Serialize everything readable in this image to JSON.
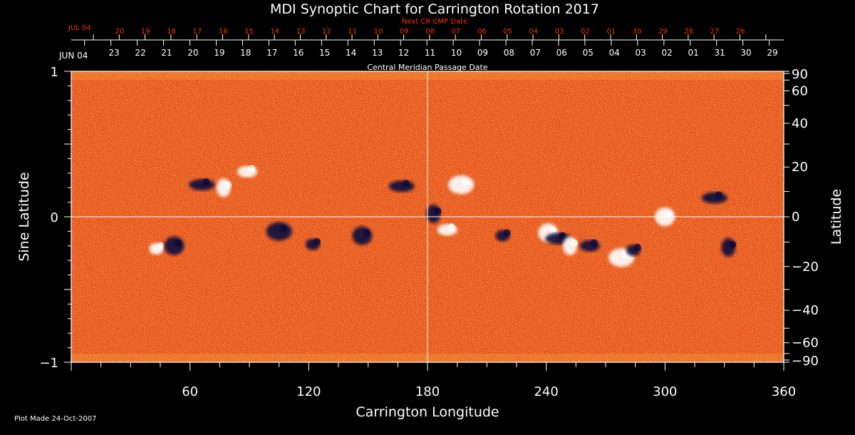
{
  "chart_data": {
    "type": "heatmap",
    "title": "MDI Synoptic Chart for Carrington Rotation 2017",
    "xlabel": "Carrington Longitude",
    "ylabel_left": "Sine Latitude",
    "ylabel_right": "Latitude",
    "xlim": [
      0,
      360
    ],
    "ylim": [
      -1,
      1
    ],
    "x_ticks": [
      60,
      120,
      180,
      240,
      300,
      360
    ],
    "y_ticks_left": [
      "1",
      "0",
      "−1"
    ],
    "y_ticks_right": [
      "90",
      "60",
      "40",
      "20",
      "0",
      "−20",
      "−40",
      "−60",
      "−90"
    ],
    "top_axis_label": "Central Meridian Passage Date",
    "top_axis_month": "JUN 04",
    "top_axis_dates": [
      "23",
      "22",
      "21",
      "20",
      "19",
      "18",
      "17",
      "16",
      "15",
      "14",
      "13",
      "12",
      "11",
      "10",
      "09",
      "08",
      "07",
      "06",
      "05",
      "04",
      "03",
      "02",
      "01",
      "31",
      "30",
      "29"
    ],
    "next_axis_label": "Next CR CMP Date",
    "next_axis_month": "JUL 04",
    "next_axis_dates": [
      "20",
      "19",
      "18",
      "17",
      "16",
      "15",
      "14",
      "13",
      "12",
      "11",
      "10",
      "09",
      "08",
      "07",
      "06",
      "05",
      "04",
      "03",
      "02",
      "01",
      "30",
      "29",
      "28",
      "27",
      "26"
    ],
    "footer": "Plot Made 24-Oct-2007",
    "grid": "crosshair at longitude 180 and latitude 0",
    "colors": {
      "background": "#000000",
      "field": "#e8490e",
      "positive": "#ffffff",
      "negative": "#0a0a3c",
      "next_axis": "#ff3300"
    },
    "active_regions": [
      {
        "lon": 43,
        "sinlat": -0.22,
        "polarity": "positive"
      },
      {
        "lon": 52,
        "sinlat": -0.2,
        "polarity": "negative"
      },
      {
        "lon": 66,
        "sinlat": 0.22,
        "polarity": "negative"
      },
      {
        "lon": 77,
        "sinlat": 0.2,
        "polarity": "positive"
      },
      {
        "lon": 89,
        "sinlat": 0.31,
        "polarity": "positive"
      },
      {
        "lon": 105,
        "sinlat": -0.1,
        "polarity": "negative"
      },
      {
        "lon": 122,
        "sinlat": -0.19,
        "polarity": "negative"
      },
      {
        "lon": 147,
        "sinlat": -0.13,
        "polarity": "negative"
      },
      {
        "lon": 167,
        "sinlat": 0.21,
        "polarity": "negative"
      },
      {
        "lon": 183,
        "sinlat": 0.02,
        "polarity": "negative"
      },
      {
        "lon": 190,
        "sinlat": -0.09,
        "polarity": "positive"
      },
      {
        "lon": 197,
        "sinlat": 0.22,
        "polarity": "positive"
      },
      {
        "lon": 218,
        "sinlat": -0.13,
        "polarity": "negative"
      },
      {
        "lon": 241,
        "sinlat": -0.11,
        "polarity": "positive"
      },
      {
        "lon": 246,
        "sinlat": -0.15,
        "polarity": "negative"
      },
      {
        "lon": 252,
        "sinlat": -0.2,
        "polarity": "positive"
      },
      {
        "lon": 262,
        "sinlat": -0.2,
        "polarity": "negative"
      },
      {
        "lon": 278,
        "sinlat": -0.28,
        "polarity": "positive"
      },
      {
        "lon": 284,
        "sinlat": -0.23,
        "polarity": "negative"
      },
      {
        "lon": 300,
        "sinlat": 0.0,
        "polarity": "positive"
      },
      {
        "lon": 325,
        "sinlat": 0.13,
        "polarity": "negative"
      },
      {
        "lon": 332,
        "sinlat": -0.21,
        "polarity": "negative"
      }
    ]
  }
}
